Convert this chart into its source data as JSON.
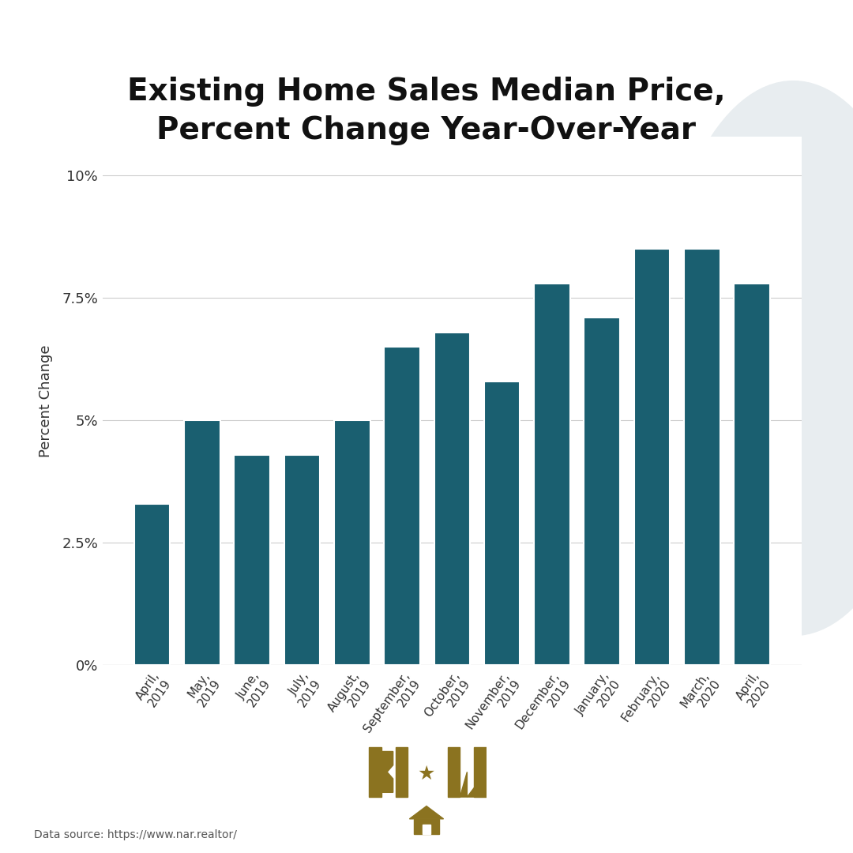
{
  "title": "Existing Home Sales Median Price,\nPercent Change Year-Over-Year",
  "ylabel": "Percent Change",
  "categories": [
    "April,\n2019",
    "May,\n2019",
    "June,\n2019",
    "July,\n2019",
    "August,\n2019",
    "September,\n2019",
    "October,\n2019",
    "November,\n2019",
    "December,\n2019",
    "January,\n2020",
    "February,\n2020",
    "March,\n2020",
    "April,\n2020"
  ],
  "values": [
    3.3,
    5.0,
    4.3,
    4.3,
    5.0,
    6.5,
    6.8,
    5.8,
    7.8,
    7.1,
    8.5,
    8.5,
    7.8
  ],
  "bar_color": "#1a5f70",
  "bar_edge_color": "#ffffff",
  "yticks": [
    0,
    2.5,
    5.0,
    7.5,
    10.0
  ],
  "ytick_labels": [
    "0%",
    "2.5%",
    "5%",
    "7.5%",
    "10%"
  ],
  "ylim": [
    0,
    10.8
  ],
  "background_color": "#ffffff",
  "title_fontsize": 28,
  "axis_label_fontsize": 13,
  "tick_fontsize": 13,
  "footnote": "Data source: https://www.nar.realtor/",
  "watermark_color": "#e8edf0",
  "logo_color": "#8B7320"
}
